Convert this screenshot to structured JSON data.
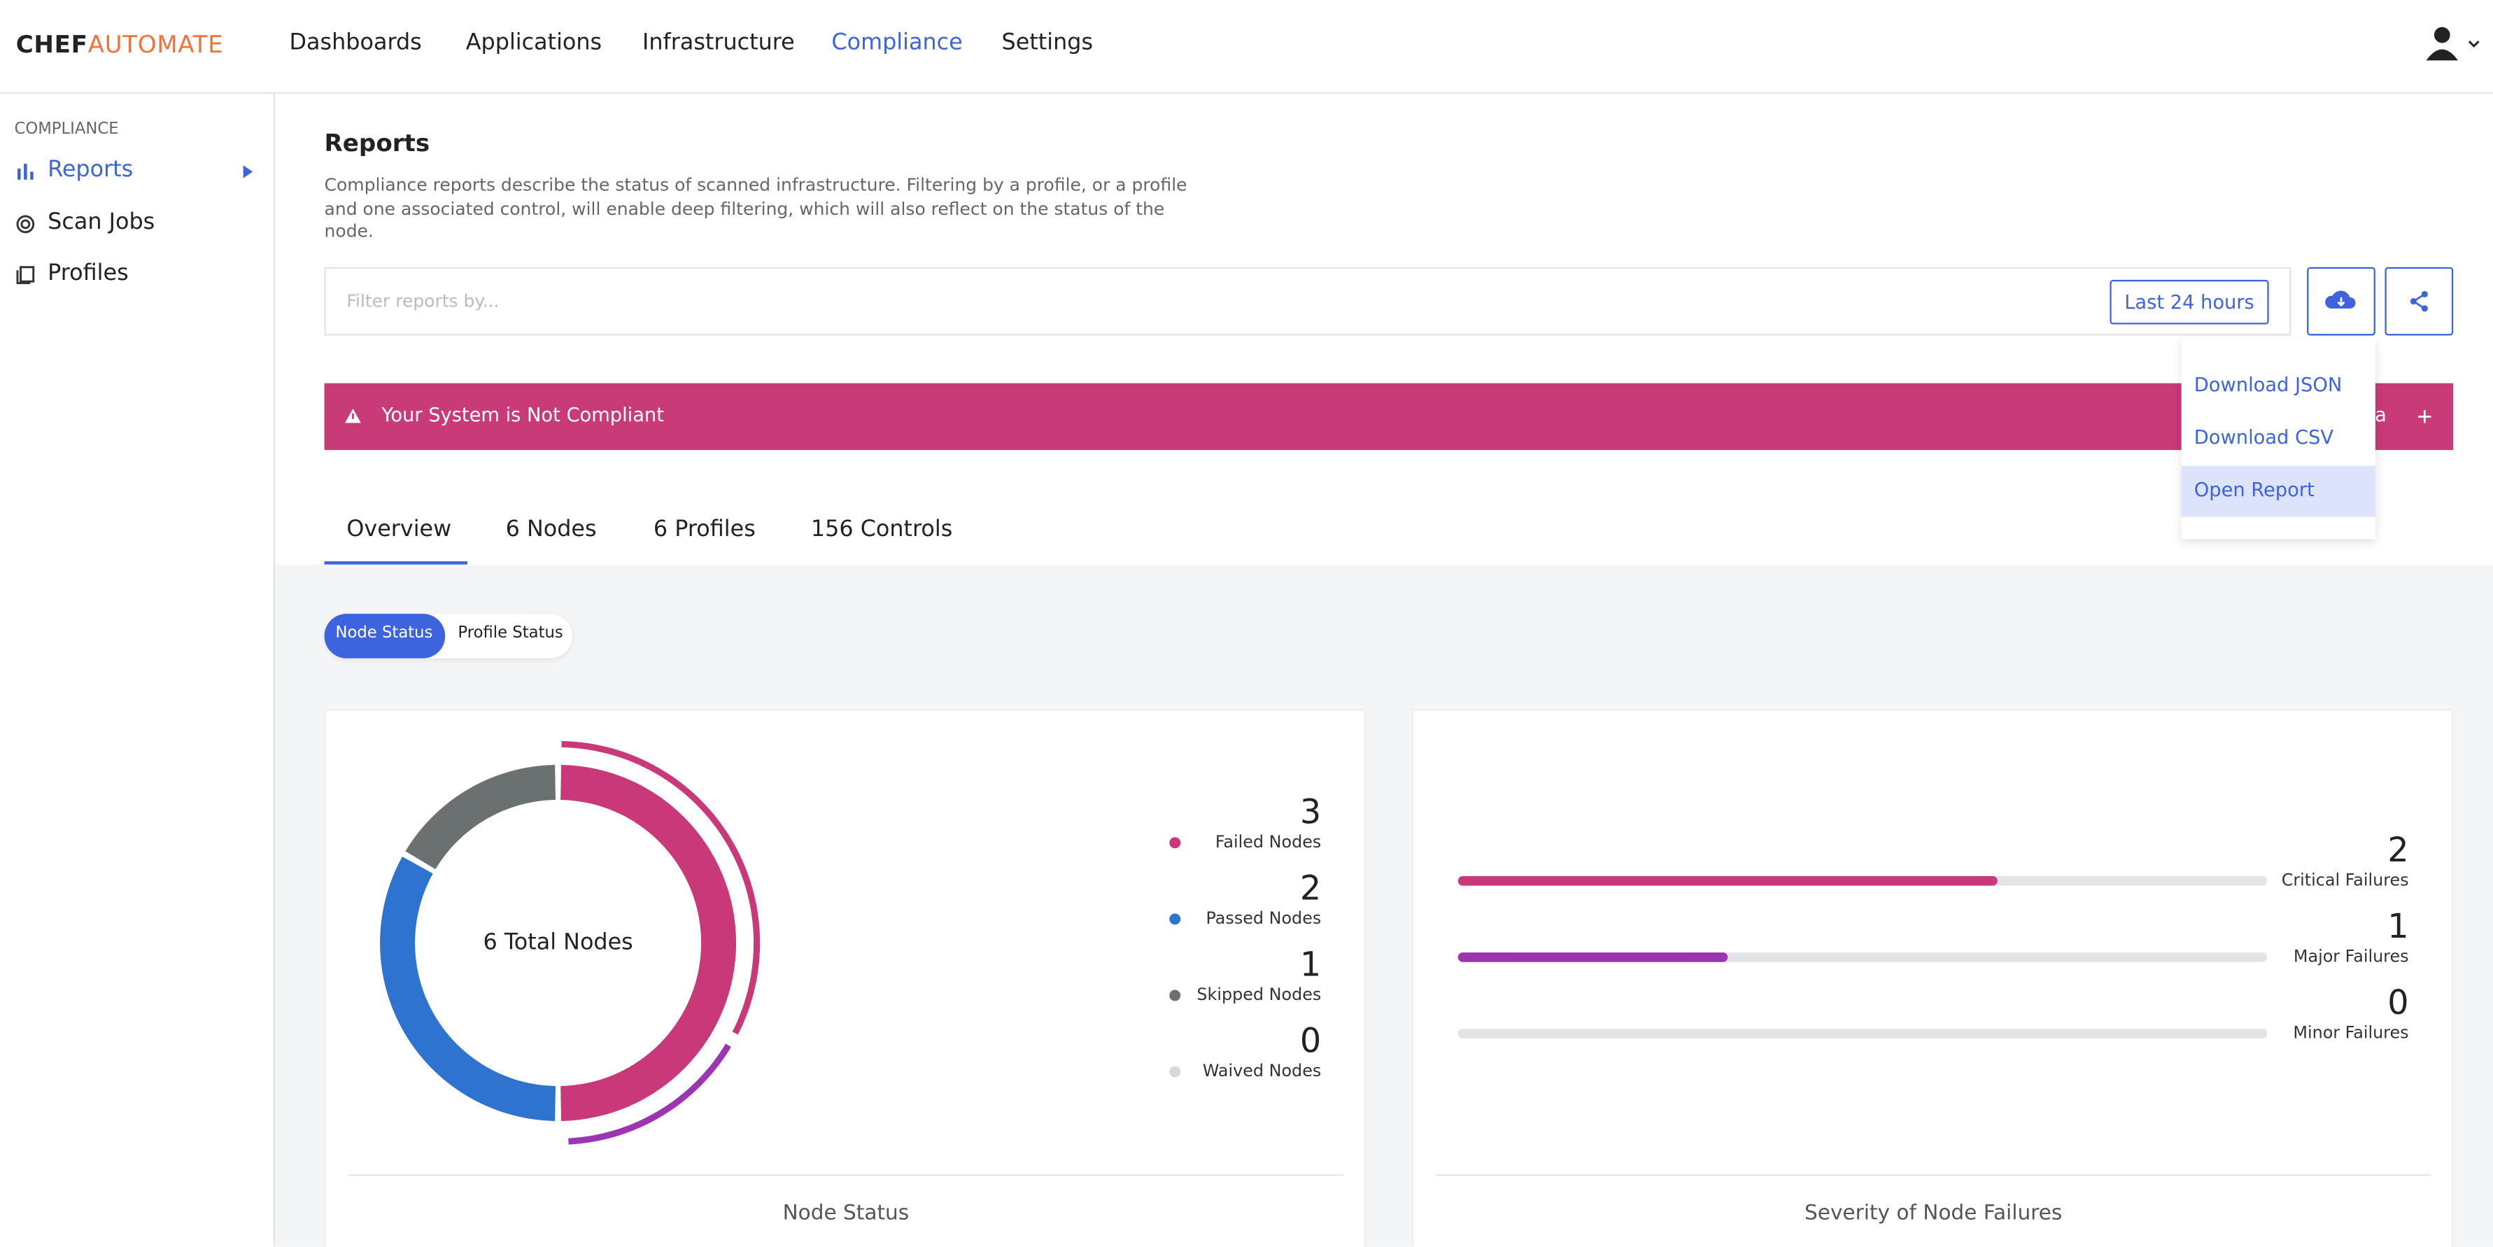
{
  "header": {
    "brand_bold": "CHEF",
    "brand_light": "AUTOMATE",
    "nav": [
      "Dashboards",
      "Applications",
      "Infrastructure",
      "Compliance",
      "Settings"
    ]
  },
  "sidebar": {
    "section": "COMPLIANCE",
    "items": [
      "Reports",
      "Scan Jobs",
      "Profiles"
    ]
  },
  "page": {
    "title": "Reports",
    "description": "Compliance reports describe the status of scanned infrastructure. Filtering by a profile, or a profile and one associated control, will enable deep filtering, which will also reflect on the status of the node."
  },
  "filter": {
    "placeholder": "Filter reports by...",
    "time_range": "Last 24 hours"
  },
  "download_menu": [
    "Download JSON",
    "Download CSV",
    "Open Report"
  ],
  "banner": {
    "message": "Your System is Not Compliant",
    "trailing": "ta"
  },
  "tabs": [
    "Overview",
    "6 Nodes",
    "6 Profiles",
    "156 Controls"
  ],
  "status_toggle": [
    "Node Status",
    "Profile Status"
  ],
  "node_status": {
    "center_label": "6 Total Nodes",
    "footer": "Node Status",
    "items": [
      {
        "name": "Failed Nodes",
        "value": 3,
        "color": "#c9397a"
      },
      {
        "name": "Passed Nodes",
        "value": 2,
        "color": "#2f73d0"
      },
      {
        "name": "Skipped Nodes",
        "value": 1,
        "color": "#6b7070"
      },
      {
        "name": "Waived Nodes",
        "value": 0,
        "color": "#d6d8da"
      }
    ]
  },
  "severity": {
    "footer": "Severity of Node Failures",
    "items": [
      {
        "name": "Critical Failures",
        "value": 2,
        "color": "#c9397a"
      },
      {
        "name": "Major Failures",
        "value": 1,
        "color": "#9b35b3"
      },
      {
        "name": "Minor Failures",
        "value": 0,
        "color": "#9b35b3"
      }
    ]
  }
}
